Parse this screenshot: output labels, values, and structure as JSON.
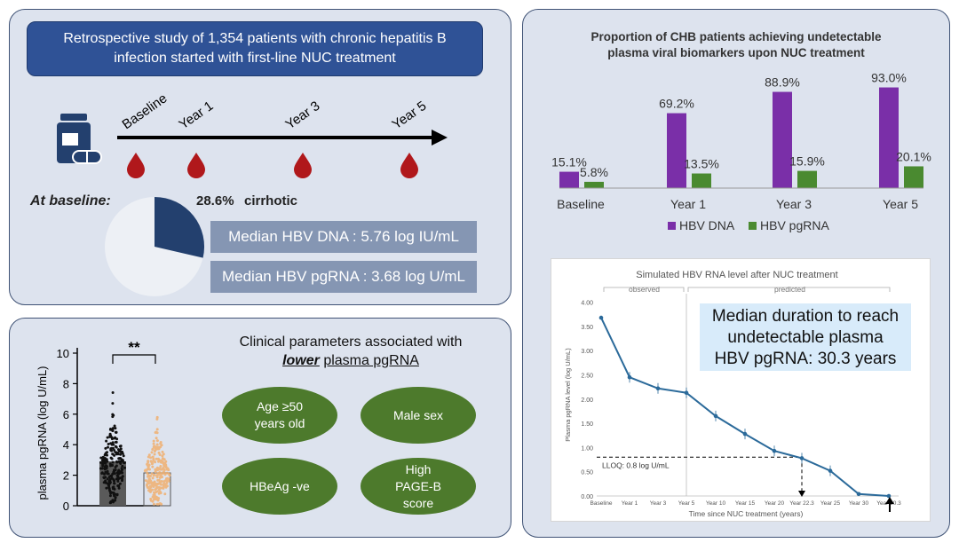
{
  "study": {
    "title_line1": "Retrospective study of 1,354 patients with chronic hepatitis B",
    "title_line2": "infection started with first-line NUC treatment",
    "timeline": [
      "Baseline",
      "Year 1",
      "Year 3",
      "Year 5"
    ],
    "at_baseline_label": "At baseline:",
    "cirrhotic_pct": "28.6%",
    "cirrhotic_label": "cirrhotic",
    "cirrhotic_fraction": 0.286,
    "median_dna": "Median HBV DNA : 5.76 log IU/mL",
    "median_pgrna": "Median HBV pgRNA : 3.68 log U/mL"
  },
  "clinical": {
    "title_line1": "Clinical parameters associated with",
    "title_emph": "lower",
    "title_rest": "plasma pgRNA",
    "ovals": [
      "Age ≥50 years old",
      "Male sex",
      "HBeAg -ve",
      "High PAGE-B score"
    ]
  },
  "scatter": {
    "ylabel": "plasma pgRNA (log U/mL)",
    "yticks": [
      "10",
      "8",
      "6",
      "4",
      "2",
      "0"
    ],
    "significance": "**"
  },
  "colors": {
    "purple": "#7a2fa8",
    "green": "#4a8a30",
    "navy": "#23406e",
    "line_blue": "#2b6a9a",
    "oval_green": "#4d7a2c"
  },
  "chart_data": [
    {
      "type": "bar",
      "title": "Proportion of CHB patients achieving undetectable plasma viral biomarkers upon NUC treatment",
      "title_line1": "Proportion of CHB patients achieving undetectable",
      "title_line2": "plasma viral biomarkers upon NUC treatment",
      "categories": [
        "Baseline",
        "Year 1",
        "Year 3",
        "Year 5"
      ],
      "series": [
        {
          "name": "HBV DNA",
          "values": [
            15.1,
            69.2,
            88.9,
            93.0
          ],
          "labels": [
            "15.1%",
            "69.2%",
            "88.9%",
            "93.0%"
          ]
        },
        {
          "name": "HBV pgRNA",
          "values": [
            5.8,
            13.5,
            15.9,
            20.1
          ],
          "labels": [
            "5.8%",
            "13.5%",
            "15.9%",
            "20.1%"
          ]
        }
      ],
      "ylim": [
        0,
        100
      ]
    },
    {
      "type": "line",
      "title": "Simulated HBV RNA level after NUC treatment",
      "xlabel": "Time since NUC treatment (years)",
      "ylabel": "Plasma pgRNA level (log U/mL)",
      "observed_label": "observed",
      "predicted_label": "predicted",
      "x": [
        "Baseline",
        "Year 1",
        "Year 3",
        "Year 5",
        "Year 10",
        "Year 15",
        "Year 20",
        "Year 22.3",
        "Year 25",
        "Year 30",
        "Year 30.3"
      ],
      "y": [
        3.68,
        2.45,
        2.22,
        2.13,
        1.65,
        1.28,
        0.93,
        0.78,
        0.52,
        0.04,
        0.0
      ],
      "yticks": [
        "0.00",
        "0.50",
        "1.00",
        "1.50",
        "2.00",
        "2.50",
        "3.00",
        "3.50",
        "4.00"
      ],
      "ylim": [
        0,
        4
      ],
      "lloq_label": "LLOQ: 0.8 log U/mL",
      "lloq": 0.8,
      "callout": [
        "Median duration to reach",
        "undetectable plasma",
        "HBV pgRNA: 30.3 years"
      ]
    }
  ]
}
